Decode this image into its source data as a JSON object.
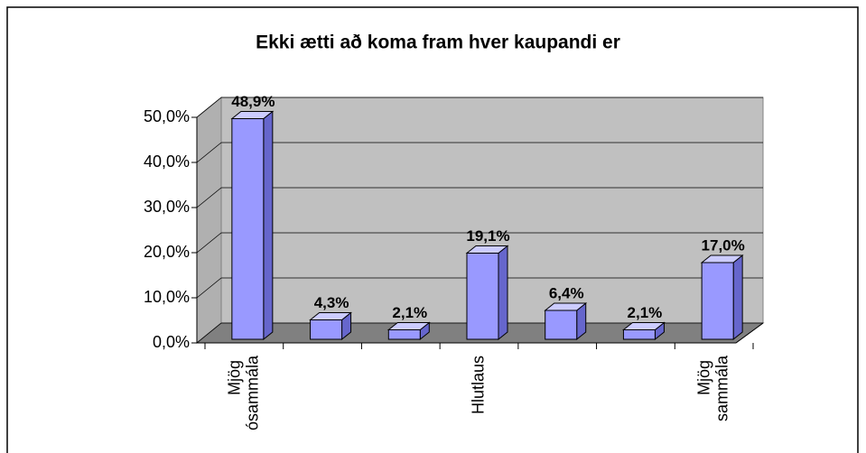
{
  "chart_data": {
    "type": "bar3d",
    "title": "Ekki ætti að koma fram hver kaupandi er",
    "categories": [
      "Mjög ósammála",
      null,
      null,
      "Hlutlaus",
      null,
      null,
      "Mjög sammála"
    ],
    "values": [
      48.9,
      4.3,
      2.1,
      19.1,
      6.4,
      2.1,
      17.0
    ],
    "value_labels": [
      "48,9%",
      "4,3%",
      "2,1%",
      "19,1%",
      "6,4%",
      "2,1%",
      "17,0%"
    ],
    "color": "#9999ff",
    "ylim": [
      0,
      50
    ],
    "yticks": [
      {
        "value": 0,
        "label": "0,0%"
      },
      {
        "value": 10,
        "label": "10,0%"
      },
      {
        "value": 20,
        "label": "20,0%"
      },
      {
        "value": 30,
        "label": "30,0%"
      },
      {
        "value": 40,
        "label": "40,0%"
      },
      {
        "value": 50,
        "label": "50,0%"
      }
    ],
    "grid": true
  }
}
